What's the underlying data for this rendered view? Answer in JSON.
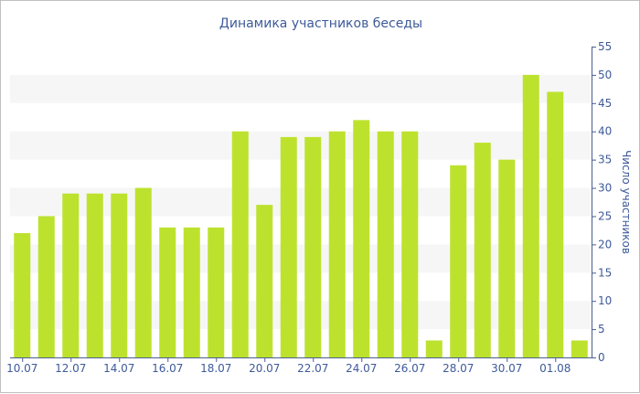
{
  "chart_data": {
    "type": "bar",
    "title": "Динамика участников беседы",
    "ylabel": "Число участников",
    "xlabel": "",
    "categories": [
      "10.07",
      "11.07",
      "12.07",
      "13.07",
      "14.07",
      "15.07",
      "16.07",
      "17.07",
      "18.07",
      "19.07",
      "20.07",
      "21.07",
      "22.07",
      "23.07",
      "24.07",
      "25.07",
      "26.07",
      "27.07",
      "28.07",
      "29.07",
      "30.07",
      "31.07",
      "01.08",
      "02.08"
    ],
    "x_tick_labels": [
      "10.07",
      "12.07",
      "14.07",
      "16.07",
      "18.07",
      "20.07",
      "22.07",
      "24.07",
      "26.07",
      "28.07",
      "30.07",
      "01.08"
    ],
    "values": [
      22,
      25,
      29,
      29,
      29,
      30,
      23,
      23,
      23,
      40,
      27,
      39,
      39,
      40,
      42,
      40,
      40,
      3,
      34,
      38,
      35,
      50,
      47,
      3
    ],
    "ylim": [
      0,
      55
    ],
    "y_ticks": [
      0,
      5,
      10,
      15,
      20,
      25,
      30,
      35,
      40,
      45,
      50,
      55
    ],
    "y_axis_side": "right",
    "grid": "alternating horizontal bands",
    "legend": "none",
    "colors": {
      "bar": "#bde22e",
      "text": "#3d5a9a",
      "band": "#f6f6f6",
      "axis": "#4a5f8f"
    }
  }
}
